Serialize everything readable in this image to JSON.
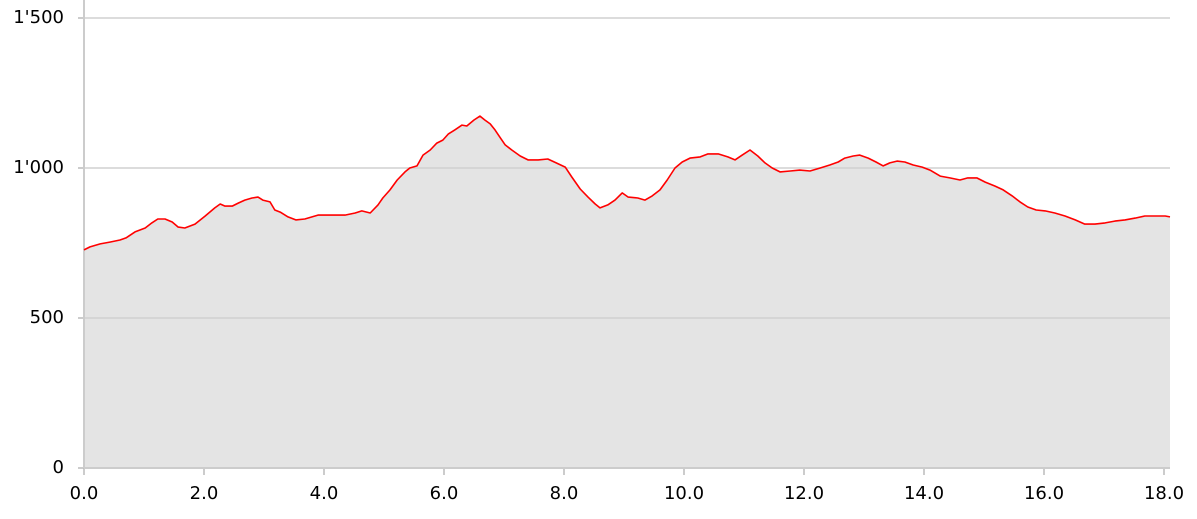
{
  "chart_data": {
    "type": "area",
    "x": [
      0,
      0.1,
      0.27,
      0.43,
      0.6,
      0.7,
      0.85,
      1.02,
      1.13,
      1.23,
      1.35,
      1.47,
      1.57,
      1.68,
      1.85,
      2.02,
      2.18,
      2.27,
      2.35,
      2.47,
      2.57,
      2.68,
      2.8,
      2.9,
      2.98,
      3.1,
      3.18,
      3.27,
      3.4,
      3.53,
      3.68,
      3.8,
      3.9,
      4.1,
      4.35,
      4.52,
      4.63,
      4.77,
      4.9,
      4.98,
      5.1,
      5.22,
      5.35,
      5.43,
      5.55,
      5.65,
      5.77,
      5.88,
      5.98,
      6.07,
      6.18,
      6.3,
      6.38,
      6.5,
      6.6,
      6.68,
      6.77,
      6.85,
      6.93,
      7.02,
      7.13,
      7.27,
      7.4,
      7.57,
      7.73,
      7.87,
      8.02,
      8.13,
      8.27,
      8.4,
      8.52,
      8.6,
      8.73,
      8.85,
      8.97,
      9.07,
      9.23,
      9.35,
      9.47,
      9.6,
      9.72,
      9.85,
      9.97,
      10.1,
      10.27,
      10.4,
      10.57,
      10.73,
      10.85,
      10.97,
      11.1,
      11.23,
      11.35,
      11.47,
      11.6,
      11.77,
      11.93,
      12.1,
      12.27,
      12.43,
      12.57,
      12.68,
      12.82,
      12.93,
      13.07,
      13.2,
      13.32,
      13.43,
      13.55,
      13.68,
      13.82,
      13.97,
      14.1,
      14.27,
      14.43,
      14.6,
      14.73,
      14.88,
      15.02,
      15.18,
      15.32,
      15.47,
      15.6,
      15.73,
      15.87,
      16.02,
      16.18,
      16.35,
      16.52,
      16.68,
      16.85,
      17.02,
      17.18,
      17.35,
      17.52,
      17.68,
      17.85,
      18.02,
      18.1
    ],
    "values": [
      727,
      737,
      747,
      753,
      760,
      767,
      787,
      800,
      817,
      830,
      830,
      820,
      803,
      800,
      813,
      840,
      867,
      880,
      873,
      873,
      883,
      893,
      900,
      903,
      893,
      887,
      860,
      853,
      837,
      827,
      830,
      837,
      843,
      843,
      843,
      850,
      857,
      850,
      877,
      900,
      927,
      960,
      987,
      1000,
      1007,
      1043,
      1060,
      1083,
      1093,
      1113,
      1127,
      1143,
      1140,
      1160,
      1173,
      1160,
      1147,
      1127,
      1103,
      1077,
      1060,
      1040,
      1027,
      1027,
      1030,
      1017,
      1003,
      970,
      930,
      903,
      880,
      867,
      877,
      893,
      917,
      903,
      900,
      893,
      907,
      927,
      960,
      1000,
      1020,
      1033,
      1037,
      1047,
      1047,
      1037,
      1027,
      1043,
      1060,
      1040,
      1017,
      1000,
      987,
      990,
      993,
      990,
      1000,
      1010,
      1020,
      1033,
      1040,
      1043,
      1033,
      1020,
      1007,
      1017,
      1023,
      1020,
      1010,
      1003,
      993,
      973,
      967,
      960,
      967,
      967,
      953,
      940,
      927,
      907,
      887,
      870,
      860,
      857,
      850,
      840,
      827,
      813,
      813,
      817,
      823,
      827,
      833,
      840,
      840,
      840,
      837
    ],
    "color": "#ff0000",
    "fill": "#e4e4e4",
    "xlim": [
      0,
      18.1
    ],
    "xticks": [
      {
        "value": 0,
        "label": "0.0"
      },
      {
        "value": 2,
        "label": "2.0"
      },
      {
        "value": 4,
        "label": "4.0"
      },
      {
        "value": 6,
        "label": "6.0"
      },
      {
        "value": 8,
        "label": "8.0"
      },
      {
        "value": 10,
        "label": "10.0"
      },
      {
        "value": 12,
        "label": "12.0"
      },
      {
        "value": 14,
        "label": "14.0"
      },
      {
        "value": 16,
        "label": "16.0"
      },
      {
        "value": 18,
        "label": "18.0"
      }
    ],
    "ylim": [
      0,
      1500
    ],
    "yticks": [
      0,
      500,
      {
        "value": 1000,
        "label": "1'000"
      },
      {
        "value": 1500,
        "label": "1'500"
      }
    ],
    "grid": true
  }
}
